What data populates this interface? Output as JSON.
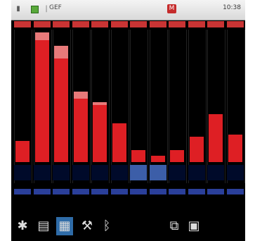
{
  "status_bar": {
    "title": "GEF",
    "app_badge": "M",
    "clock": "10:38"
  },
  "chart_data": {
    "type": "bar",
    "categories": [
      "",
      "",
      "",
      "",
      "",
      "",
      "",
      "",
      "",
      "",
      "",
      ""
    ],
    "values": [
      16,
      92,
      78,
      48,
      43,
      29,
      9,
      5,
      9,
      19,
      36,
      21
    ],
    "secondary_values": [
      16,
      98,
      88,
      53,
      45,
      29,
      9,
      5,
      9,
      19,
      36,
      21
    ],
    "ylim": [
      0,
      100
    ],
    "selected_indices": [
      6,
      7
    ]
  },
  "dock": {
    "items": [
      {
        "icon": "sparkle-icon"
      },
      {
        "icon": "notes-icon"
      },
      {
        "icon": "document-icon",
        "active": true
      },
      {
        "icon": "tools-icon"
      },
      {
        "icon": "bluetooth-icon"
      },
      {
        "icon": "pair-icon"
      },
      {
        "icon": "settings-icon"
      }
    ]
  }
}
